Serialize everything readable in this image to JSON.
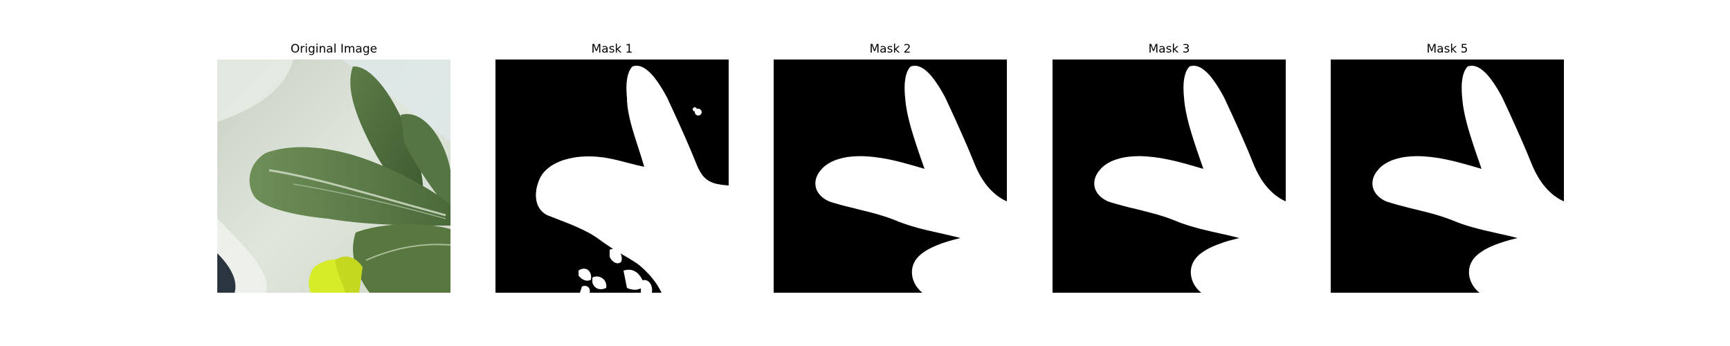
{
  "figure": {
    "panels": [
      {
        "title": "Original Image",
        "kind": "photo",
        "subject": "leafy-green-plant-photo"
      },
      {
        "title": "Mask 1",
        "kind": "mask",
        "variant": "noisy"
      },
      {
        "title": "Mask 2",
        "kind": "mask",
        "variant": "clean"
      },
      {
        "title": "Mask 3",
        "kind": "mask",
        "variant": "clean"
      },
      {
        "title": "Mask 5",
        "kind": "mask",
        "variant": "clean"
      }
    ],
    "colors": {
      "mask_background": "#000000",
      "mask_foreground": "#ffffff",
      "photo_background": "#d7e0d2",
      "leaf_dark": "#4f6f3e",
      "leaf_mid": "#6c8c56",
      "leaf_vein": "#c9d6bd",
      "yellow_accent": "#d6ec28"
    }
  }
}
